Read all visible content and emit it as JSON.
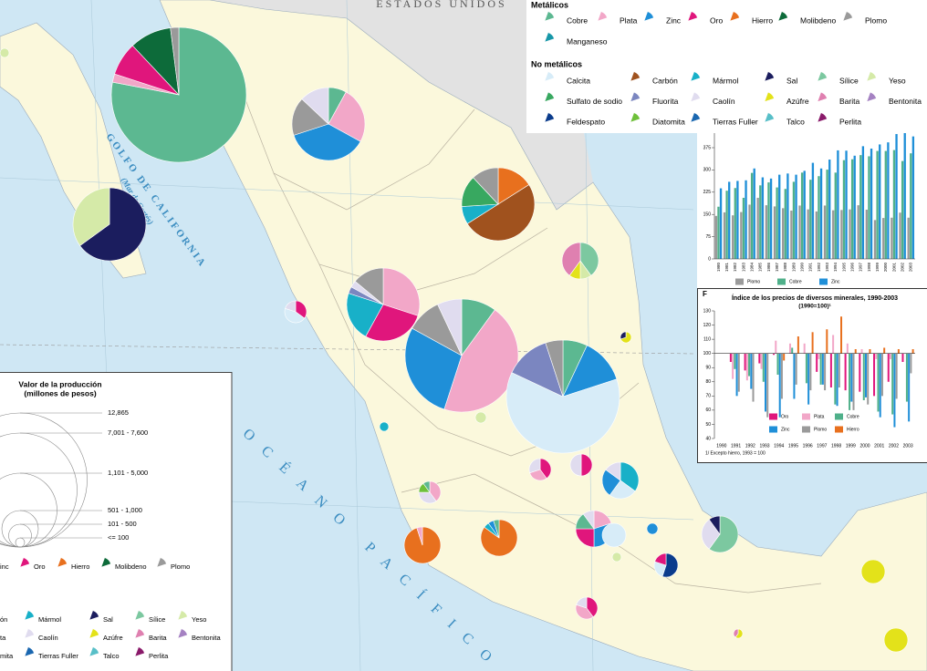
{
  "map": {
    "labels": {
      "usa": "ESTADOS UNIDOS",
      "gulf": "GOLFO DE CALIFORNIA",
      "gulf_alt": "(Mar de Cortés)",
      "ocean": "OCÉANO PACÍFICO"
    }
  },
  "legend": {
    "metalicos": {
      "title": "Metálicos",
      "items": [
        {
          "name": "Cobre",
          "color": "#5cb891"
        },
        {
          "name": "Plata",
          "color": "#f2a7c8"
        },
        {
          "name": "Zinc",
          "color": "#1f8fd8"
        },
        {
          "name": "Oro",
          "color": "#e0167c"
        },
        {
          "name": "Hierro",
          "color": "#e8701e"
        },
        {
          "name": "Molibdeno",
          "color": "#0d6b3a"
        },
        {
          "name": "Plomo",
          "color": "#9a9a9a"
        },
        {
          "name": "Manganeso",
          "color": "#1797a8"
        }
      ]
    },
    "no_metalicos": {
      "title": "No metálicos",
      "items": [
        {
          "name": "Calcita",
          "color": "#d7ecf8"
        },
        {
          "name": "Carbón",
          "color": "#a0521e"
        },
        {
          "name": "Mármol",
          "color": "#18b0c8"
        },
        {
          "name": "Sal",
          "color": "#1b1d5e"
        },
        {
          "name": "Sílice",
          "color": "#7cc8a0"
        },
        {
          "name": "Yeso",
          "color": "#d5eaa8"
        },
        {
          "name": "Sulfato de sodio",
          "color": "#38a860"
        },
        {
          "name": "Fluorita",
          "color": "#7b86c0"
        },
        {
          "name": "Caolín",
          "color": "#e0dcef"
        },
        {
          "name": "Azúfre",
          "color": "#e3e21a"
        },
        {
          "name": "Barita",
          "color": "#df80b0"
        },
        {
          "name": "Bentonita",
          "color": "#a582c2"
        },
        {
          "name": "Feldespato",
          "color": "#0b3c8c"
        },
        {
          "name": "Diatomita",
          "color": "#6ec03a"
        },
        {
          "name": "Tierras Fuller",
          "color": "#1a67b0"
        },
        {
          "name": "Talco",
          "color": "#58bfc8"
        },
        {
          "name": "Perlita",
          "color": "#8a1a6a"
        }
      ]
    }
  },
  "size_legend": {
    "title": "Valor de la producción",
    "subtitle": "(millones de pesos)",
    "classes": [
      "12,865",
      "7,001 - 7,600",
      "1,101 - 5,000",
      "501 - 1,000",
      "101 -   500",
      "<= 100"
    ]
  },
  "partial_legend": [
    [
      {
        "name": "inc",
        "color": "#1f8fd8"
      },
      {
        "name": "Oro",
        "color": "#e0167c"
      },
      {
        "name": "Hierro",
        "color": "#e8701e"
      },
      {
        "name": "Molibdeno",
        "color": "#0d6b3a"
      },
      {
        "name": "Plomo",
        "color": "#9a9a9a"
      }
    ],
    [
      {
        "name": "ón",
        "color": "#a0521e"
      },
      {
        "name": "Mármol",
        "color": "#18b0c8"
      },
      {
        "name": "Sal",
        "color": "#1b1d5e"
      },
      {
        "name": "Sílice",
        "color": "#7cc8a0"
      },
      {
        "name": "Yeso",
        "color": "#d5eaa8"
      }
    ],
    [
      {
        "name": "ta",
        "color": "#7b86c0"
      },
      {
        "name": "Caolín",
        "color": "#e0dcef"
      },
      {
        "name": "Azúfre",
        "color": "#e3e21a"
      },
      {
        "name": "Barita",
        "color": "#df80b0"
      },
      {
        "name": "Bentonita",
        "color": "#a582c2"
      }
    ],
    [
      {
        "name": "mita",
        "color": "#6ec03a"
      },
      {
        "name": "Tierras Fuller",
        "color": "#1a67b0"
      },
      {
        "name": "Talco",
        "color": "#58bfc8"
      },
      {
        "name": "Perlita",
        "color": "#8a1a6a"
      }
    ]
  ],
  "pies": [
    {
      "slices": [
        {
          "color": "#5cb891",
          "value": 78
        },
        {
          "color": "#f2a7c8",
          "value": 2
        },
        {
          "color": "#e0167c",
          "value": 8
        },
        {
          "color": "#0d6b3a",
          "value": 10
        },
        {
          "color": "#9a9a9a",
          "value": 2
        }
      ]
    },
    {
      "slices": [
        {
          "color": "#5cb891",
          "value": 8
        },
        {
          "color": "#f2a7c8",
          "value": 25
        },
        {
          "color": "#1f8fd8",
          "value": 37
        },
        {
          "color": "#9a9a9a",
          "value": 17
        },
        {
          "color": "#e0dcef",
          "value": 13
        }
      ]
    },
    {
      "slices": [
        {
          "color": "#1b1d5e",
          "value": 65
        },
        {
          "color": "#d5eaa8",
          "value": 35
        }
      ]
    },
    {
      "slices": [
        {
          "color": "#e8701e",
          "value": 16
        },
        {
          "color": "#a0521e",
          "value": 50
        },
        {
          "color": "#18b0c8",
          "value": 8
        },
        {
          "color": "#38a860",
          "value": 14
        },
        {
          "color": "#9a9a9a",
          "value": 12
        }
      ]
    },
    {
      "slices": [
        {
          "color": "#7cc8a0",
          "value": 40
        },
        {
          "color": "#d5eaa8",
          "value": 10
        },
        {
          "color": "#e3e21a",
          "value": 10
        },
        {
          "color": "#df80b0",
          "value": 40
        }
      ]
    },
    {
      "slices": [
        {
          "color": "#f2a7c8",
          "value": 30
        },
        {
          "color": "#e0167c",
          "value": 28
        },
        {
          "color": "#18b0c8",
          "value": 22
        },
        {
          "color": "#7b86c0",
          "value": 3
        },
        {
          "color": "#e0dcef",
          "value": 3
        },
        {
          "color": "#9a9a9a",
          "value": 14
        }
      ]
    },
    {
      "slices": [
        {
          "color": "#e0167c",
          "value": 35
        },
        {
          "color": "#d7ecf8",
          "value": 45
        },
        {
          "color": "#e0dcef",
          "value": 20
        }
      ]
    },
    {
      "slices": [
        {
          "color": "#5cb891",
          "value": 10
        },
        {
          "color": "#f2a7c8",
          "value": 45
        },
        {
          "color": "#1f8fd8",
          "value": 28
        },
        {
          "color": "#9a9a9a",
          "value": 10
        },
        {
          "color": "#e0dcef",
          "value": 7
        }
      ]
    },
    {
      "slices": [
        {
          "color": "#5cb891",
          "value": 7
        },
        {
          "color": "#1f8fd8",
          "value": 13
        },
        {
          "color": "#d7ecf8",
          "value": 62
        },
        {
          "color": "#7b86c0",
          "value": 13
        },
        {
          "color": "#9a9a9a",
          "value": 5
        }
      ]
    },
    {
      "slices": [
        {
          "color": "#e3e21a",
          "value": 70
        },
        {
          "color": "#1b1d5e",
          "value": 30
        }
      ]
    },
    {
      "slices": [
        {
          "color": "#18b0c8",
          "value": 100
        }
      ]
    },
    {
      "slices": [
        {
          "color": "#d5eaa8",
          "value": 100
        }
      ]
    },
    {
      "slices": [
        {
          "color": "#e0167c",
          "value": 40
        },
        {
          "color": "#f2a7c8",
          "value": 30
        },
        {
          "color": "#e0dcef",
          "value": 30
        }
      ]
    },
    {
      "slices": [
        {
          "color": "#e0167c",
          "value": 50
        },
        {
          "color": "#e0dcef",
          "value": 50
        }
      ]
    },
    {
      "slices": [
        {
          "color": "#18b0c8",
          "value": 35
        },
        {
          "color": "#d7ecf8",
          "value": 25
        },
        {
          "color": "#1f8fd8",
          "value": 25
        },
        {
          "color": "#e0dcef",
          "value": 15
        }
      ]
    },
    {
      "slices": [
        {
          "color": "#f2a7c8",
          "value": 40
        },
        {
          "color": "#e0dcef",
          "value": 35
        },
        {
          "color": "#6ec03a",
          "value": 15
        },
        {
          "color": "#5cb891",
          "value": 10
        }
      ]
    },
    {
      "slices": [
        {
          "color": "#e8701e",
          "value": 95
        },
        {
          "color": "#f2a7c8",
          "value": 5
        }
      ]
    },
    {
      "slices": [
        {
          "color": "#e8701e",
          "value": 85
        },
        {
          "color": "#18b0c8",
          "value": 5
        },
        {
          "color": "#1f8fd8",
          "value": 5
        },
        {
          "color": "#5cb891",
          "value": 5
        }
      ]
    },
    {
      "slices": [
        {
          "color": "#f2a7c8",
          "value": 20
        },
        {
          "color": "#1f8fd8",
          "value": 30
        },
        {
          "color": "#e0167c",
          "value": 25
        },
        {
          "color": "#5cb891",
          "value": 15
        },
        {
          "color": "#e0dcef",
          "value": 10
        }
      ]
    },
    {
      "slices": [
        {
          "color": "#d7ecf8",
          "value": 100
        }
      ]
    },
    {
      "slices": [
        {
          "color": "#1f8fd8",
          "value": 100
        }
      ]
    },
    {
      "slices": [
        {
          "color": "#0b3c8c",
          "value": 55
        },
        {
          "color": "#d7ecf8",
          "value": 25
        },
        {
          "color": "#e0167c",
          "value": 20
        }
      ]
    },
    {
      "slices": [
        {
          "color": "#7cc8a0",
          "value": 60
        },
        {
          "color": "#e0dcef",
          "value": 30
        },
        {
          "color": "#1b1d5e",
          "value": 10
        }
      ]
    },
    {
      "slices": [
        {
          "color": "#e0167c",
          "value": 40
        },
        {
          "color": "#f2a7c8",
          "value": 40
        },
        {
          "color": "#e0dcef",
          "value": 20
        }
      ]
    },
    {
      "slices": [
        {
          "color": "#d5eaa8",
          "value": 100
        }
      ]
    },
    {
      "slices": [
        {
          "color": "#e3e21a",
          "value": 100
        }
      ]
    },
    {
      "slices": [
        {
          "color": "#e3e21a",
          "value": 100
        }
      ]
    },
    {
      "slices": [
        {
          "color": "#e3e21a",
          "value": 60
        },
        {
          "color": "#df80b0",
          "value": 40
        }
      ]
    },
    {
      "slices": [
        {
          "color": "#d5eaa8",
          "value": 100
        }
      ]
    }
  ],
  "chart_data": [
    {
      "type": "bar",
      "categories": [
        "1980",
        "1981",
        "1982",
        "1983",
        "1984",
        "1985",
        "1986",
        "1987",
        "1988",
        "1989",
        "1990",
        "1991",
        "1992",
        "1993",
        "1994",
        "1995",
        "1996",
        "1997",
        "1998",
        "1999",
        "2000",
        "2001",
        "2002",
        "2003"
      ],
      "series": [
        {
          "name": "Plomo",
          "color": "#9a9a9a",
          "values": [
            145,
            157,
            147,
            158,
            183,
            206,
            181,
            177,
            171,
            163,
            180,
            167,
            160,
            180,
            164,
            165,
            167,
            181,
            166,
            131,
            138,
            139,
            156,
            139
          ]
        },
        {
          "name": "Cobre",
          "color": "#4fb08a",
          "values": [
            176,
            230,
            239,
            206,
            290,
            248,
            258,
            241,
            236,
            260,
            291,
            267,
            279,
            301,
            291,
            333,
            336,
            350,
            346,
            364,
            364,
            367,
            330,
            356
          ]
        },
        {
          "name": "Zinc",
          "color": "#1f8fd8",
          "values": [
            238,
            260,
            263,
            265,
            305,
            275,
            271,
            284,
            288,
            284,
            297,
            324,
            305,
            335,
            366,
            365,
            348,
            380,
            372,
            386,
            393,
            421,
            446,
            413
          ]
        }
      ],
      "ylim": [
        0,
        450
      ],
      "yticks": [
        0,
        75,
        150,
        225,
        300,
        375
      ]
    },
    {
      "type": "bar",
      "label": "F",
      "title": "Índice de los precios de diversos minerales, 1990-2003",
      "subtitle": "(1990=100)¹",
      "note": "1/ Excepto hierro, 1993 = 100",
      "categories": [
        "1990",
        "1991",
        "1992",
        "1993",
        "1994",
        "1995",
        "1996",
        "1997",
        "1998",
        "1999",
        "2000",
        "2001",
        "2002",
        "2003"
      ],
      "series": [
        {
          "name": "Oro",
          "color": "#e0167c",
          "values": [
            100,
            94,
            88,
            93,
            99,
            100,
            100,
            87,
            76,
            74,
            73,
            70,
            80,
            94
          ]
        },
        {
          "name": "Plata",
          "color": "#f2a7c8",
          "values": [
            100,
            82,
            81,
            89,
            109,
            107,
            107,
            96,
            113,
            107,
            103,
            96,
            96,
            100
          ]
        },
        {
          "name": "Cobre",
          "color": "#4fb08a",
          "values": [
            100,
            89,
            84,
            80,
            85,
            104,
            79,
            78,
            64,
            60,
            67,
            59,
            57,
            66
          ]
        },
        {
          "name": "Zinc",
          "color": "#1f8fd8",
          "values": [
            100,
            70,
            75,
            59,
            55,
            68,
            64,
            78,
            63,
            66,
            69,
            55,
            48,
            52
          ]
        },
        {
          "name": "Plomo",
          "color": "#9a9a9a",
          "values": [
            100,
            73,
            66,
            55,
            68,
            78,
            74,
            74,
            76,
            60,
            64,
            70,
            68,
            86
          ]
        },
        {
          "name": "Hierro",
          "color": "#e8701e",
          "values": [
            null,
            null,
            null,
            100,
            95,
            112,
            115,
            117,
            126,
            103,
            103,
            104,
            103,
            103
          ]
        }
      ],
      "ylim": [
        40,
        130
      ],
      "yticks": [
        40,
        50,
        60,
        70,
        80,
        90,
        100,
        110,
        120,
        130
      ],
      "baseline": 100
    }
  ]
}
